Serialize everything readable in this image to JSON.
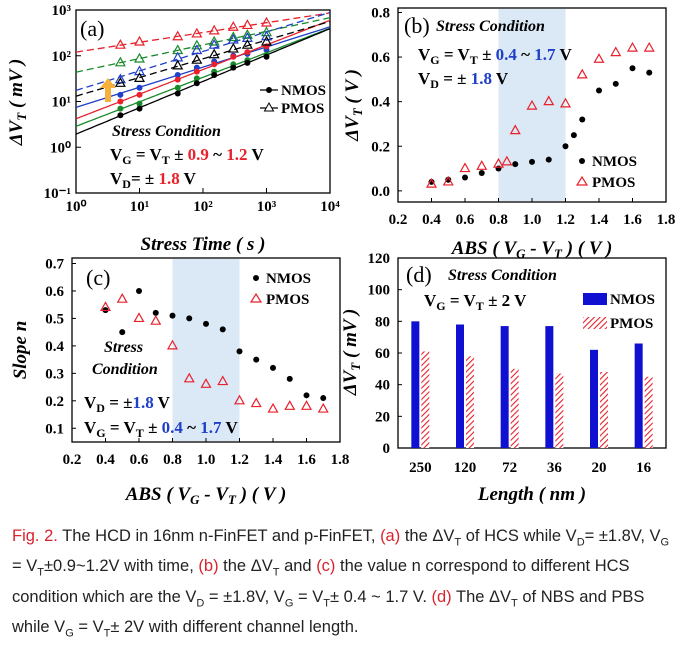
{
  "chart_data": [
    {
      "panel": "(a)",
      "type": "scatter",
      "log_x": true,
      "log_y": true,
      "xlim": [
        1,
        10000
      ],
      "ylim": [
        0.1,
        1000
      ],
      "xticks": [
        "10⁰",
        "10¹",
        "10²",
        "10³",
        "10⁴"
      ],
      "yticks": [
        "10⁻¹",
        "10⁰",
        "10¹",
        "10²",
        "10³"
      ],
      "xlabel": "Stress Time ( s )",
      "ylabel": "ΔVT ( mV )",
      "legend": [
        "NMOS",
        "PMOS"
      ],
      "legend_position": "right",
      "annotation": {
        "title": "Stress Condition",
        "vg": "VG = VT ± 0.9 ~ 1.2 V",
        "vg_range": [
          "0.9",
          "1.2"
        ],
        "vd": "VD= ± 1.8 V",
        "vd_value": "1.8"
      },
      "nmos_series": [
        {
          "color": "#1f3fc8",
          "x": [
            5,
            10,
            40,
            80,
            150,
            300,
            500,
            1000
          ],
          "y": [
            14,
            20,
            38,
            55,
            75,
            100,
            110,
            135
          ]
        },
        {
          "color": "#e8212b",
          "x": [
            5,
            10,
            40,
            80,
            150,
            300,
            500,
            1000
          ],
          "y": [
            10,
            14,
            30,
            45,
            65,
            95,
            120,
            160
          ]
        },
        {
          "color": "#178a2a",
          "x": [
            5,
            10,
            40,
            80,
            150,
            300,
            500,
            1000
          ],
          "y": [
            7,
            9,
            20,
            32,
            45,
            65,
            80,
            105
          ]
        },
        {
          "color": "#000000",
          "x": [
            5,
            10,
            40,
            80,
            150,
            300,
            500,
            1000
          ],
          "y": [
            5,
            7,
            15,
            25,
            38,
            55,
            70,
            95
          ]
        }
      ],
      "pmos_series": [
        {
          "color": "#e8212b",
          "x": [
            5,
            10,
            40,
            80,
            150,
            300,
            500,
            1000
          ],
          "y": [
            170,
            200,
            260,
            300,
            350,
            420,
            460,
            520
          ]
        },
        {
          "color": "#178a2a",
          "x": [
            5,
            10,
            40,
            80,
            150,
            300,
            500,
            1000
          ],
          "y": [
            70,
            85,
            130,
            165,
            200,
            250,
            280,
            320
          ]
        },
        {
          "color": "#1f3fc8",
          "x": [
            5,
            10,
            40,
            80,
            150,
            300,
            500,
            1000
          ],
          "y": [
            30,
            45,
            90,
            130,
            170,
            220,
            240,
            260
          ]
        },
        {
          "color": "#000000",
          "x": [
            5,
            10,
            40,
            80,
            150,
            300,
            500,
            1000
          ],
          "y": [
            25,
            32,
            60,
            80,
            105,
            140,
            170,
            200
          ]
        }
      ]
    },
    {
      "panel": "(b)",
      "type": "scatter",
      "xlim": [
        0.2,
        1.8
      ],
      "ylim": [
        -0.05,
        0.82
      ],
      "xticks": [
        "0.2",
        "0.4",
        "0.6",
        "0.8",
        "1.0",
        "1.2",
        "1.4",
        "1.6",
        "1.8"
      ],
      "yticks": [
        "0.0",
        "0.2",
        "0.4",
        "0.6",
        "0.8"
      ],
      "xlabel": "ABS ( VG - VT ) ( V )",
      "ylabel": "ΔVT ( V )",
      "shaded_range": [
        0.8,
        1.2
      ],
      "legend": [
        "NMOS",
        "PMOS"
      ],
      "annotation": {
        "title": "Stress Condition",
        "vg": "VG = VT ± 0.4 ~ 1.7 V",
        "vg_range": [
          "0.4",
          "1.7"
        ],
        "vd": "VD = ± 1.8 V",
        "vd_value": "1.8"
      },
      "series": [
        {
          "name": "NMOS",
          "x": [
            0.4,
            0.5,
            0.6,
            0.7,
            0.8,
            0.9,
            1.0,
            1.1,
            1.2,
            1.25,
            1.3,
            1.4,
            1.5,
            1.6,
            1.7
          ],
          "y": [
            0.04,
            0.05,
            0.06,
            0.08,
            0.1,
            0.12,
            0.13,
            0.14,
            0.2,
            0.25,
            0.32,
            0.45,
            0.48,
            0.55,
            0.53
          ]
        },
        {
          "name": "PMOS",
          "x": [
            0.4,
            0.5,
            0.6,
            0.7,
            0.8,
            0.85,
            0.9,
            1.0,
            1.1,
            1.2,
            1.3,
            1.4,
            1.5,
            1.6,
            1.7
          ],
          "y": [
            0.03,
            0.04,
            0.1,
            0.11,
            0.12,
            0.13,
            0.27,
            0.38,
            0.4,
            0.39,
            0.52,
            0.59,
            0.62,
            0.64,
            0.64
          ]
        }
      ]
    },
    {
      "panel": "(c)",
      "type": "scatter",
      "xlim": [
        0.2,
        1.8
      ],
      "ylim": [
        0.05,
        0.72
      ],
      "xticks": [
        "0.2",
        "0.4",
        "0.6",
        "0.8",
        "1.0",
        "1.2",
        "1.4",
        "1.6",
        "1.8"
      ],
      "yticks": [
        "0.1",
        "0.2",
        "0.3",
        "0.4",
        "0.5",
        "0.6",
        "0.7"
      ],
      "xlabel": "ABS ( VG - VT )  ( V )",
      "ylabel": "Slope n",
      "shaded_range": [
        0.8,
        1.2
      ],
      "legend": [
        "NMOS",
        "PMOS"
      ],
      "annotation": {
        "title": "Stress",
        "title2": "Condition",
        "vd": "VD = ±1.8 V",
        "vd_value": "1.8",
        "vg": "VG = VT ± 0.4 ~ 1.7 V",
        "vg_range": [
          "0.4",
          "1.7"
        ]
      },
      "series": [
        {
          "name": "NMOS",
          "x": [
            0.4,
            0.5,
            0.6,
            0.7,
            0.8,
            0.9,
            1.0,
            1.1,
            1.2,
            1.3,
            1.4,
            1.5,
            1.6,
            1.7
          ],
          "y": [
            0.53,
            0.45,
            0.6,
            0.52,
            0.51,
            0.5,
            0.48,
            0.46,
            0.38,
            0.35,
            0.32,
            0.28,
            0.22,
            0.21
          ]
        },
        {
          "name": "PMOS",
          "x": [
            0.4,
            0.5,
            0.6,
            0.7,
            0.8,
            0.9,
            1.0,
            1.1,
            1.2,
            1.3,
            1.4,
            1.5,
            1.6,
            1.7
          ],
          "y": [
            0.54,
            0.57,
            0.5,
            0.49,
            0.4,
            0.28,
            0.26,
            0.27,
            0.2,
            0.19,
            0.17,
            0.18,
            0.18,
            0.17
          ]
        }
      ]
    },
    {
      "panel": "(d)",
      "type": "bar",
      "categories": [
        "250",
        "120",
        "72",
        "36",
        "20",
        "16"
      ],
      "ylim": [
        0,
        120
      ],
      "yticks": [
        "0",
        "20",
        "40",
        "60",
        "80",
        "100",
        "120"
      ],
      "xlabel": "Length ( nm )",
      "ylabel": "ΔVT ( mV )",
      "legend": [
        "NMOS",
        "PMOS"
      ],
      "annotation": {
        "title": "Stress Condition",
        "vg": "VG = VT ± 2 V"
      },
      "series": [
        {
          "name": "NMOS",
          "color": "#1010d0",
          "values": [
            80,
            78,
            77,
            77,
            62,
            66
          ]
        },
        {
          "name": "PMOS",
          "color": "#e8212b",
          "values": [
            61,
            58,
            50,
            47,
            48,
            45
          ]
        }
      ]
    }
  ],
  "caption": {
    "fig_label": "Fig. 2.",
    "a": "(a)",
    "b": "(b)",
    "c": "(c)",
    "d": "(d)",
    "t1": "The HCD in 16nm n-FinFET and p-FinFET,",
    "t2": "the ΔV",
    "t3": "of HCS while V",
    "t4": "= ±1.8V, V",
    "t5": "= V",
    "t6": "±0.9~1.2V with time,",
    "t7": "the ΔV",
    "t8": "and",
    "t9": "the value n correspond to different HCS condition which are the V",
    "t10": "= ±1.8V, V",
    "t11": "= V",
    "t12": "± 0.4 ~ 1.7 V.",
    "t13": "The ΔV",
    "t14": "of NBS and PBS while V",
    "t15": "= V",
    "t16": "± 2V with different channel length.",
    "sub_t": "T",
    "sub_d": "D",
    "sub_g": "G"
  }
}
